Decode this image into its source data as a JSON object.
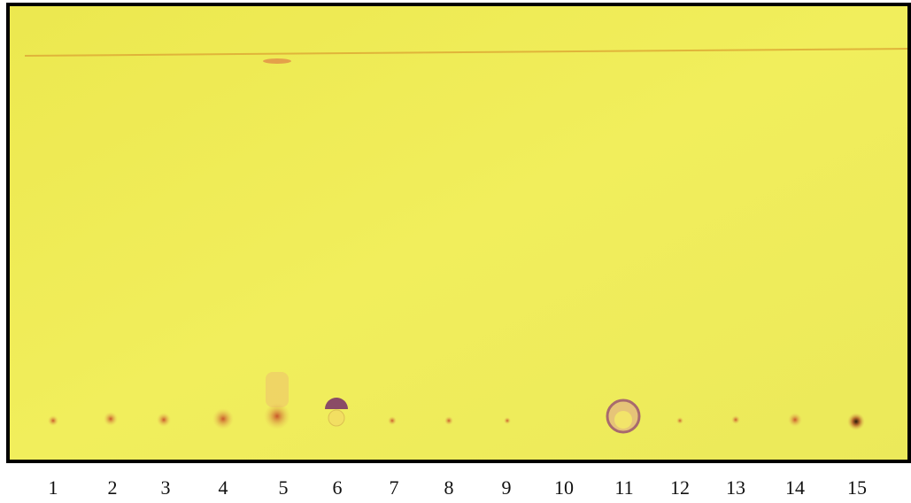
{
  "lanes": {
    "labels": [
      "1",
      "2",
      "3",
      "4",
      "5",
      "6",
      "7",
      "8",
      "9",
      "10",
      "11",
      "12",
      "13",
      "14",
      "15"
    ]
  }
}
